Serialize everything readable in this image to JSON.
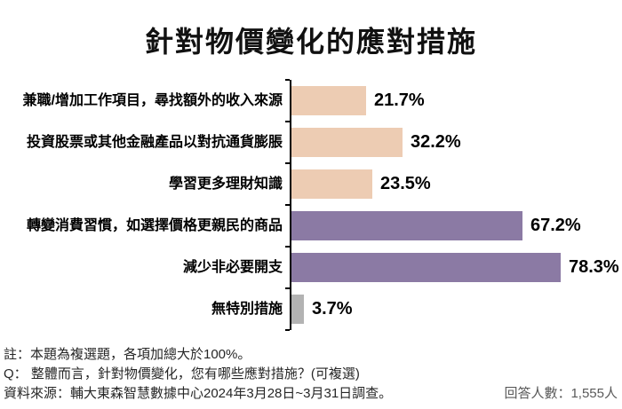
{
  "title": "針對物價變化的應對措施",
  "chart_data": {
    "type": "bar",
    "orientation": "horizontal",
    "title": "針對物價變化的應對措施",
    "categories": [
      "兼職/增加工作項目，尋找額外的收入來源",
      "投資股票或其他金融產品以對抗通貨膨脹",
      "學習更多理財知識",
      "轉變消費習慣，如選擇價格更親民的商品",
      "減少非必要開支",
      "無特別措施"
    ],
    "values": [
      21.7,
      32.2,
      23.5,
      67.2,
      78.3,
      3.7
    ],
    "value_labels": [
      "21.7%",
      "32.2%",
      "23.5%",
      "67.2%",
      "78.3%",
      "3.7%"
    ],
    "bar_colors": [
      "#edccb3",
      "#edccb3",
      "#edccb3",
      "#8b7aa4",
      "#8b7aa4",
      "#b3b3b3"
    ],
    "xlabel": "",
    "ylabel": "",
    "xlim": [
      0,
      93
    ],
    "grid": false,
    "legend": "none",
    "axis_color": "#000000"
  },
  "notes": {
    "note1": "註：本題為複選題，各項加總大於100%。",
    "question": "Q： 整體而言，針對物價變化，您有哪些應對措施？(可複選)",
    "source": "資料來源：輔大東森智慧數據中心2024年3月28日~3月31日調查。",
    "respondents": "回答人數：1,555人"
  }
}
